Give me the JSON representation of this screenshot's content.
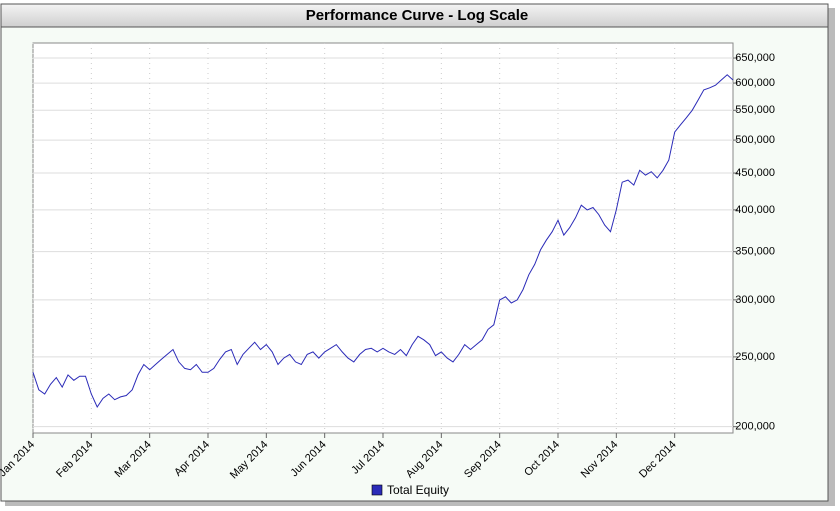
{
  "chart_data": {
    "type": "line",
    "title": "Performance Curve - Log Scale",
    "categories": [
      "Jan 2014",
      null,
      null,
      null,
      null,
      null,
      null,
      null,
      null,
      null,
      "Feb 2014",
      null,
      null,
      null,
      null,
      null,
      null,
      null,
      null,
      null,
      "Mar 2014",
      null,
      null,
      null,
      null,
      null,
      null,
      null,
      null,
      null,
      "Apr 2014",
      null,
      null,
      null,
      null,
      null,
      null,
      null,
      null,
      null,
      "May 2014",
      null,
      null,
      null,
      null,
      null,
      null,
      null,
      null,
      null,
      "Jun 2014",
      null,
      null,
      null,
      null,
      null,
      null,
      null,
      null,
      null,
      "Jul 2014",
      null,
      null,
      null,
      null,
      null,
      null,
      null,
      null,
      null,
      "Aug 2014",
      null,
      null,
      null,
      null,
      null,
      null,
      null,
      null,
      null,
      "Sep 2014",
      null,
      null,
      null,
      null,
      null,
      null,
      null,
      null,
      null,
      "Oct 2014",
      null,
      null,
      null,
      null,
      null,
      null,
      null,
      null,
      null,
      "Nov 2014",
      null,
      null,
      null,
      null,
      null,
      null,
      null,
      null,
      null,
      "Dec 2014",
      null,
      null,
      null,
      null,
      null,
      null,
      null,
      null,
      null,
      null
    ],
    "series": [
      {
        "name": "Total Equity",
        "color": "#2b2bb8",
        "values": [
          238000,
          225000,
          222000,
          229000,
          234000,
          227000,
          236000,
          232000,
          235000,
          235000,
          222000,
          213000,
          219000,
          222000,
          218000,
          220000,
          221000,
          225000,
          236000,
          244000,
          240000,
          244000,
          248000,
          252000,
          256000,
          246000,
          241000,
          240000,
          244000,
          238000,
          238000,
          241000,
          248000,
          254000,
          256000,
          244000,
          252000,
          257000,
          262000,
          256000,
          260000,
          254000,
          244000,
          249000,
          252000,
          246000,
          244000,
          252000,
          254000,
          249000,
          254000,
          257000,
          260000,
          254000,
          249000,
          246000,
          252000,
          256000,
          257000,
          254000,
          257000,
          254000,
          252000,
          256000,
          251000,
          260000,
          267000,
          264000,
          260000,
          251000,
          254000,
          249000,
          246000,
          252000,
          260000,
          256000,
          260000,
          264000,
          273000,
          277000,
          300000,
          303000,
          297000,
          300000,
          310000,
          325000,
          336000,
          352000,
          363000,
          373000,
          387000,
          369000,
          378000,
          390000,
          406000,
          400000,
          403000,
          394000,
          381000,
          373000,
          400000,
          437000,
          440000,
          433000,
          454000,
          447000,
          452000,
          443000,
          454000,
          469000,
          513000,
          525000,
          537000,
          550000,
          568000,
          587000,
          591000,
          596000,
          606000,
          616000,
          606000
        ]
      }
    ],
    "log_scale": true,
    "ylim": [
      196000,
      682000
    ],
    "yticks": [
      {
        "value": 200000,
        "label": "200,000"
      },
      {
        "value": 250000,
        "label": "250,000"
      },
      {
        "value": 300000,
        "label": "300,000"
      },
      {
        "value": 350000,
        "label": "350,000"
      },
      {
        "value": 400000,
        "label": "400,000"
      },
      {
        "value": 450000,
        "label": "450,000"
      },
      {
        "value": 500000,
        "label": "500,000"
      },
      {
        "value": 550000,
        "label": "550,000"
      },
      {
        "value": 600000,
        "label": "600,000"
      },
      {
        "value": 650000,
        "label": "650,000"
      }
    ],
    "grid": true,
    "legend": "bottom"
  }
}
